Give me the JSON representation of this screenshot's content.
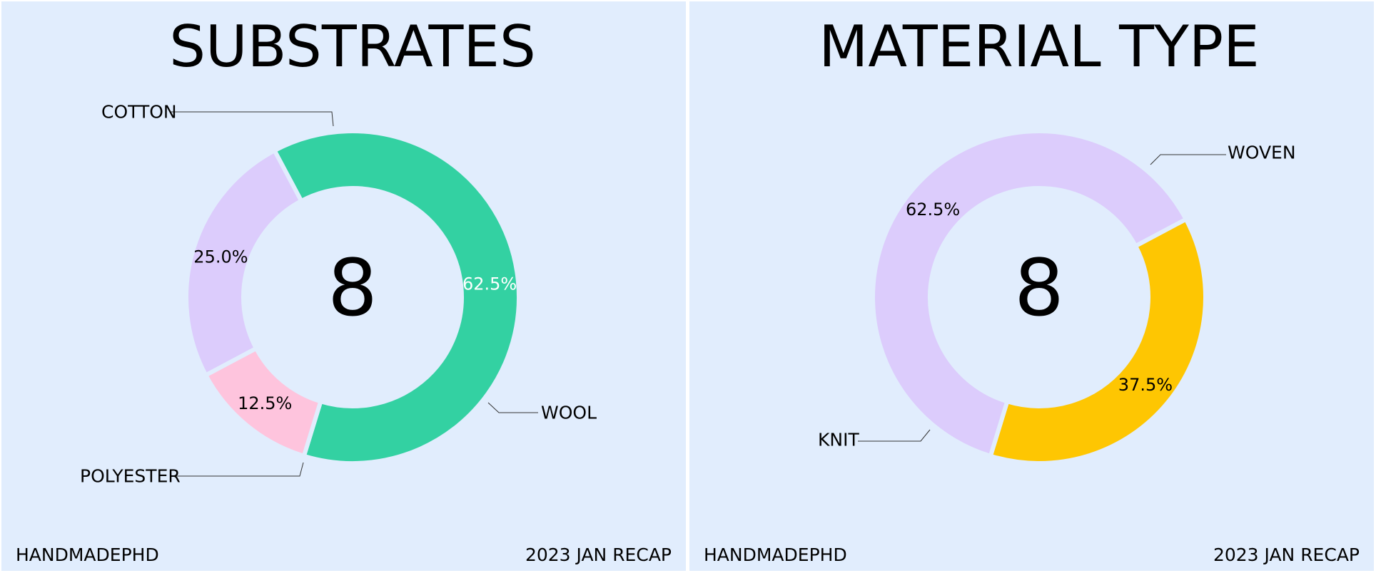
{
  "footer": {
    "left": "HANDMADEPHD",
    "right": "2023 JAN RECAP"
  },
  "chart_data": [
    {
      "type": "pie",
      "title": "SUBSTRATES",
      "center_total": "8",
      "categories": [
        "COTTON",
        "WOOL",
        "POLYESTER"
      ],
      "values": [
        62.5,
        12.5,
        25.0
      ],
      "value_labels": [
        "62.5%",
        "12.5%",
        "25.0%"
      ],
      "colors": [
        "#33d1a2",
        "#fec4dd",
        "#dcccfc"
      ],
      "value_label_colors": [
        "#ffffff",
        "#000000",
        "#000000"
      ],
      "start_angle_deg": 242,
      "legend": "callouts"
    },
    {
      "type": "pie",
      "title": "MATERIAL TYPE",
      "center_total": "8",
      "categories": [
        "WOVEN",
        "KNIT"
      ],
      "values": [
        37.5,
        62.5
      ],
      "value_labels": [
        "37.5%",
        "62.5%"
      ],
      "colors": [
        "#fec602",
        "#dcccfc"
      ],
      "value_label_colors": [
        "#000000",
        "#000000"
      ],
      "start_angle_deg": 332,
      "legend": "callouts"
    }
  ]
}
